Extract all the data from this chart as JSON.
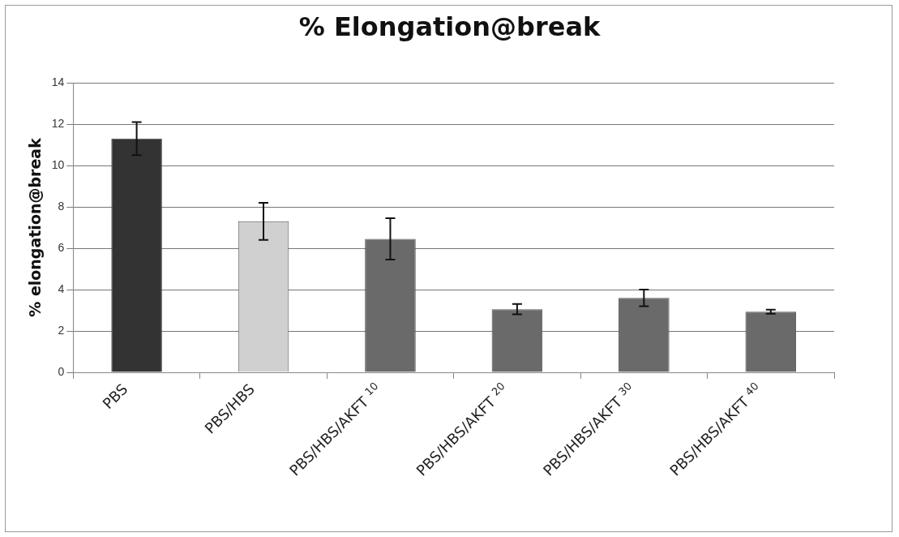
{
  "chart_data": {
    "type": "bar",
    "title": "% Elongation@break",
    "ylabel": "% elongation@break",
    "categories": [
      "PBS",
      "PBS/HBS",
      "PBS/HBS/AKFT $^{10}$",
      "PBS/HBS/AKFT $^{20}$",
      "PBS/HBS/AKFT $^{30}$",
      "PBS/HBS/AKFT $^{40}$"
    ],
    "values": [
      11.3,
      7.3,
      6.45,
      3.05,
      3.6,
      2.93
    ],
    "errors": [
      0.8,
      0.9,
      1.0,
      0.25,
      0.4,
      0.1
    ],
    "colors": [
      "#333333",
      "#d0d0d0",
      "#6a6a6a",
      "#6a6a6a",
      "#6a6a6a",
      "#6a6a6a"
    ],
    "ylim": [
      0,
      14
    ],
    "yticks": [
      0,
      2,
      4,
      6,
      8,
      10,
      12,
      14
    ],
    "grid": "y"
  }
}
